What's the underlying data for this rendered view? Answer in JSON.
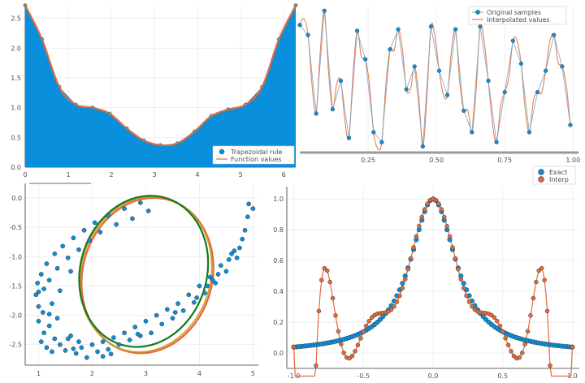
{
  "colors": {
    "blue": "#0a8fdc",
    "orange": "#e26a3c",
    "green": "#137a1d",
    "gold": "#c9a227",
    "grid": "#e6e6e6",
    "axis": "#333333"
  },
  "chart_data": [
    {
      "type": "area",
      "panel": "top-left",
      "xlim": [
        0,
        6.28
      ],
      "ylim": [
        0,
        2.7
      ],
      "xticks": [
        "0",
        "1",
        "2",
        "3",
        "4",
        "5",
        "6"
      ],
      "yticks": [
        "0.0",
        "0.5",
        "1.0",
        "1.5",
        "2.0",
        "2.5"
      ],
      "legend": {
        "placement": "bottom-right",
        "entries": [
          "Trapezoidal rule",
          "Function values"
        ]
      },
      "series": [
        {
          "name": "Trapezoidal rule",
          "kind": "filled-area-with-markers",
          "x": [
            0,
            0.39,
            0.79,
            1.18,
            1.57,
            1.96,
            2.36,
            2.75,
            3.14,
            3.53,
            3.93,
            4.32,
            4.71,
            5.11,
            5.5,
            5.89,
            6.28
          ],
          "values": [
            2.72,
            2.15,
            1.35,
            1.05,
            1.0,
            0.9,
            0.65,
            0.45,
            0.37,
            0.4,
            0.6,
            0.86,
            0.97,
            1.05,
            1.35,
            2.15,
            2.72
          ]
        },
        {
          "name": "Function values",
          "kind": "line",
          "x": [
            0,
            0.39,
            0.79,
            1.18,
            1.57,
            1.96,
            2.36,
            2.75,
            3.14,
            3.53,
            3.93,
            4.32,
            4.71,
            5.11,
            5.5,
            5.89,
            6.28
          ],
          "values": [
            2.72,
            2.15,
            1.35,
            1.05,
            1.0,
            0.9,
            0.65,
            0.45,
            0.37,
            0.4,
            0.6,
            0.86,
            0.97,
            1.05,
            1.35,
            2.15,
            2.72
          ]
        }
      ]
    },
    {
      "type": "line",
      "panel": "top-right",
      "xlim": [
        0,
        1.02
      ],
      "ylim": [
        0,
        1
      ],
      "xticks": [
        "0.25",
        "0.50",
        "0.75",
        "1.00"
      ],
      "legend": {
        "placement": "top-right",
        "entries": [
          "Original samples",
          "Interpolated values"
        ]
      },
      "series": [
        {
          "name": "Original samples",
          "kind": "line-with-markers",
          "x": [
            0.0,
            0.03,
            0.06,
            0.09,
            0.12,
            0.15,
            0.18,
            0.21,
            0.24,
            0.27,
            0.3,
            0.33,
            0.36,
            0.39,
            0.42,
            0.45,
            0.48,
            0.51,
            0.54,
            0.57,
            0.6,
            0.63,
            0.66,
            0.69,
            0.72,
            0.75,
            0.78,
            0.81,
            0.84,
            0.87,
            0.9,
            0.93,
            0.96,
            0.99
          ],
          "values": [
            0.87,
            0.8,
            0.25,
            0.97,
            0.28,
            0.48,
            0.08,
            0.83,
            0.63,
            0.12,
            0.05,
            0.7,
            0.84,
            0.42,
            0.58,
            0.02,
            0.86,
            0.55,
            0.38,
            0.84,
            0.27,
            0.12,
            0.86,
            0.48,
            0.05,
            0.4,
            0.76,
            0.6,
            0.12,
            0.4,
            0.55,
            0.8,
            0.58,
            0.17
          ]
        },
        {
          "name": "Interpolated values",
          "kind": "line"
        }
      ]
    },
    {
      "type": "scatter",
      "panel": "bottom-left",
      "xlim": [
        0.75,
        5.1
      ],
      "ylim": [
        -2.85,
        0.25
      ],
      "xticks": [
        "1",
        "2",
        "3",
        "4",
        "5"
      ],
      "yticks": [
        "0.0",
        "-0.5",
        "-1.0",
        "-1.5",
        "-2.0",
        "-2.5"
      ],
      "series": [
        {
          "kind": "points",
          "points": [
            [
              1.05,
              -2.45
            ],
            [
              1.1,
              -2.3
            ],
            [
              1.15,
              -2.55
            ],
            [
              1.2,
              -2.18
            ],
            [
              1.25,
              -2.62
            ],
            [
              1.3,
              -2.4
            ],
            [
              1.35,
              -2.05
            ],
            [
              1.4,
              -2.5
            ],
            [
              1.5,
              -2.6
            ],
            [
              1.6,
              -2.35
            ],
            [
              1.7,
              -2.65
            ],
            [
              1.8,
              -2.55
            ],
            [
              1.9,
              -2.72
            ],
            [
              2.0,
              -2.5
            ],
            [
              2.1,
              -2.62
            ],
            [
              2.2,
              -2.45
            ],
            [
              2.3,
              -2.58
            ],
            [
              2.4,
              -2.38
            ],
            [
              2.5,
              -2.5
            ],
            [
              2.6,
              -2.3
            ],
            [
              2.7,
              -2.42
            ],
            [
              2.8,
              -2.2
            ],
            [
              2.9,
              -2.35
            ],
            [
              3.0,
              -2.1
            ],
            [
              3.1,
              -2.3
            ],
            [
              3.2,
              -2.0
            ],
            [
              3.3,
              -2.15
            ],
            [
              3.4,
              -1.9
            ],
            [
              3.5,
              -2.05
            ],
            [
              3.6,
              -1.8
            ],
            [
              3.7,
              -1.92
            ],
            [
              3.8,
              -1.65
            ],
            [
              3.9,
              -1.78
            ],
            [
              4.0,
              -1.5
            ],
            [
              4.1,
              -1.62
            ],
            [
              4.2,
              -1.35
            ],
            [
              4.3,
              -1.45
            ],
            [
              4.4,
              -1.15
            ],
            [
              4.5,
              -1.25
            ],
            [
              4.6,
              -0.95
            ],
            [
              4.7,
              -1.02
            ],
            [
              4.8,
              -0.7
            ],
            [
              4.85,
              -0.55
            ],
            [
              4.9,
              -0.32
            ],
            [
              4.92,
              -0.1
            ],
            [
              5.0,
              -0.18
            ],
            [
              4.75,
              -0.85
            ],
            [
              4.55,
              -1.05
            ],
            [
              4.35,
              -1.3
            ],
            [
              4.15,
              -1.5
            ],
            [
              0.95,
              -1.65
            ],
            [
              0.98,
              -1.45
            ],
            [
              1.0,
              -1.85
            ],
            [
              1.05,
              -1.3
            ],
            [
              1.1,
              -1.55
            ],
            [
              1.15,
              -1.12
            ],
            [
              1.2,
              -1.4
            ],
            [
              1.3,
              -0.95
            ],
            [
              1.35,
              -1.2
            ],
            [
              1.45,
              -0.82
            ],
            [
              1.55,
              -1.02
            ],
            [
              1.65,
              -0.68
            ],
            [
              1.75,
              -0.88
            ],
            [
              1.85,
              -0.55
            ],
            [
              1.95,
              -0.72
            ],
            [
              2.05,
              -0.42
            ],
            [
              2.15,
              -0.58
            ],
            [
              2.3,
              -0.3
            ],
            [
              2.45,
              -0.45
            ],
            [
              2.6,
              -0.18
            ],
            [
              2.75,
              -0.35
            ],
            [
              2.9,
              -0.08
            ],
            [
              3.05,
              -0.22
            ],
            [
              1.25,
              -1.8
            ],
            [
              1.4,
              -1.58
            ],
            [
              1.6,
              -1.25
            ],
            [
              1.0,
              -2.1
            ],
            [
              1.08,
              -1.95
            ],
            [
              2.2,
              -2.7
            ],
            [
              1.55,
              -2.4
            ],
            [
              1.75,
              -2.45
            ],
            [
              3.55,
              -1.95
            ],
            [
              3.95,
              -1.7
            ],
            [
              4.25,
              -1.4
            ],
            [
              4.65,
              -0.9
            ],
            [
              2.85,
              -2.32
            ],
            [
              2.35,
              -2.66
            ],
            [
              1.65,
              -2.57
            ],
            [
              1.2,
              -1.98
            ],
            [
              1.0,
              -1.6
            ]
          ]
        },
        {
          "kind": "fitted-ellipse",
          "center": [
            3.0,
            -1.28
          ],
          "radii": [
            1.5,
            1.55
          ],
          "tilt_deg": 44
        }
      ]
    },
    {
      "type": "line",
      "panel": "bottom-right",
      "xlim": [
        -1.05,
        1.05
      ],
      "ylim": [
        -0.1,
        1.08
      ],
      "xticks": [
        "-1.0",
        "-0.5",
        "0.0",
        "0.5",
        "1.0"
      ],
      "yticks": [
        "0.0",
        "0.2",
        "0.4",
        "0.6",
        "0.8",
        "1.0"
      ],
      "legend": {
        "placement": "top-right",
        "entries": [
          "Exact",
          "Interp"
        ]
      },
      "series": [
        {
          "name": "Exact",
          "function": "1/(1+25x^2)"
        },
        {
          "name": "Interp",
          "nodes": 13
        }
      ]
    }
  ]
}
